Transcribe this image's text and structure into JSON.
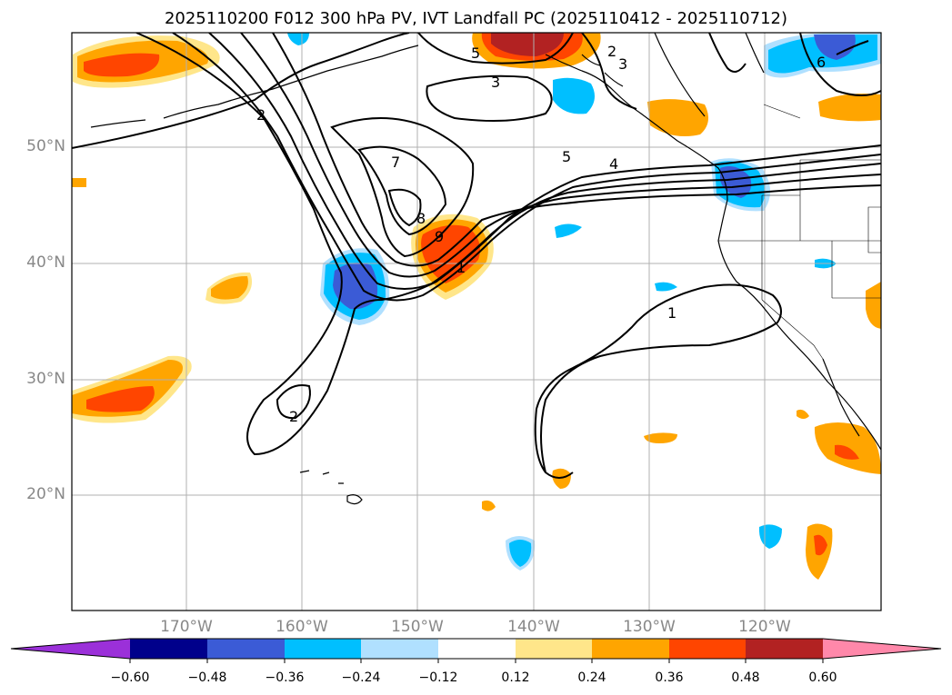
{
  "title": "2025110200 F012 300 hPa PV, IVT Landfall PC (2025110412 - 2025110712)",
  "lat_labels": [
    "50°N",
    "40°N",
    "30°N",
    "20°N"
  ],
  "lon_labels": [
    "170°W",
    "160°W",
    "150°W",
    "140°W",
    "130°W",
    "120°W"
  ],
  "contour_labels": [
    "2",
    "3",
    "5",
    "7",
    "8",
    "9",
    "1",
    "5",
    "4",
    "2",
    "3",
    "6",
    "1",
    "2"
  ],
  "colorbar": {
    "ticks": [
      "−0.60",
      "−0.48",
      "−0.36",
      "−0.24",
      "−0.12",
      "0.12",
      "0.24",
      "0.36",
      "0.48",
      "0.60"
    ],
    "colors": [
      "#9b30d9",
      "#00008b",
      "#3b5bd6",
      "#00bfff",
      "#b0e0ff",
      "#ffffff",
      "#ffe68a",
      "#ffa500",
      "#ff4500",
      "#b22222",
      "#ff88aa"
    ]
  },
  "colors": {
    "pos_low": "#ffe68a",
    "pos_mid": "#ffa500",
    "pos_high": "#ff4500",
    "pos_max": "#b22222",
    "neg_low": "#b0e0ff",
    "neg_mid": "#00bfff",
    "neg_high": "#3b5bd6"
  }
}
